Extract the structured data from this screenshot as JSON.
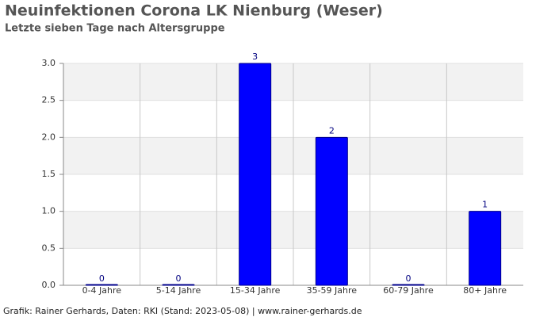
{
  "chart_data": {
    "type": "bar",
    "title": "Neuinfektionen Corona LK Nienburg (Weser)",
    "subtitle": "Letzte sieben Tage nach Altersgruppe",
    "footer": "Grafik: Rainer Gerhards, Daten: RKI (Stand: 2023-05-08) | www.rainer-gerhards.de",
    "categories": [
      "0-4 Jahre",
      "5-14 Jahre",
      "15-34 Jahre",
      "35-59 Jahre",
      "60-79 Jahre",
      "80+ Jahre"
    ],
    "values": [
      0,
      0,
      3,
      2,
      0,
      1
    ],
    "color": "#0000ff",
    "ylim": [
      0,
      3
    ],
    "yticks": [
      {
        "value": 0,
        "label": "0.0"
      },
      0.5,
      {
        "value": 1,
        "label": "1.0"
      },
      1.5,
      {
        "value": 2,
        "label": "2.0"
      },
      2.5,
      {
        "value": 3,
        "label": "3.0"
      }
    ],
    "grid": true
  }
}
